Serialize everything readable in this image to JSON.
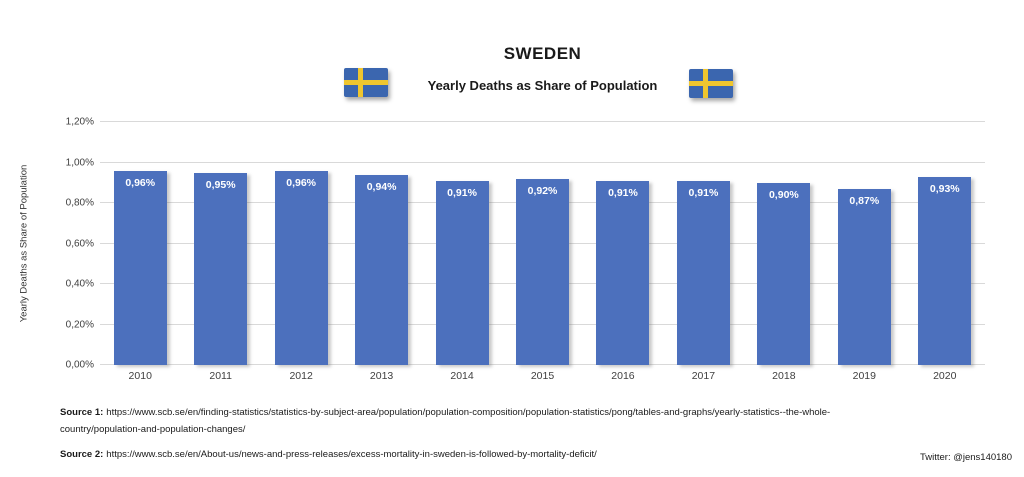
{
  "header": {
    "title": "SWEDEN",
    "subtitle": "Yearly Deaths as Share of Population"
  },
  "chart_data": {
    "type": "bar",
    "title": "SWEDEN",
    "subtitle": "Yearly Deaths as Share of Population",
    "categories": [
      "2010",
      "2011",
      "2012",
      "2013",
      "2014",
      "2015",
      "2016",
      "2017",
      "2018",
      "2019",
      "2020"
    ],
    "values": [
      0.96,
      0.95,
      0.96,
      0.94,
      0.91,
      0.92,
      0.91,
      0.91,
      0.9,
      0.87,
      0.93
    ],
    "bar_labels": [
      "0,96%",
      "0,95%",
      "0,96%",
      "0,94%",
      "0,91%",
      "0,92%",
      "0,91%",
      "0,91%",
      "0,90%",
      "0,87%",
      "0,93%"
    ],
    "xlabel": "",
    "ylabel": "Yearly Deaths as Share of Population",
    "ylim": [
      0,
      1.2
    ],
    "yticks": [
      0,
      0.2,
      0.4,
      0.6,
      0.8,
      1.0,
      1.2
    ],
    "ytick_labels": [
      "0,00%",
      "0,20%",
      "0,40%",
      "0,60%",
      "0,80%",
      "1,00%",
      "1,20%"
    ],
    "grid": true,
    "legend": false,
    "bar_color": "#4C70BD",
    "gridline_color": "#d9d9d9",
    "label_color": "#ffffff"
  },
  "flag": {
    "name": "sweden-flag",
    "blue": "#3B66AF",
    "yellow": "#EFC62F"
  },
  "footer": {
    "source1_label": "Source 1:",
    "source1_url": "https://www.scb.se/en/finding-statistics/statistics-by-subject-area/population/population-composition/population-statistics/pong/tables-and-graphs/yearly-statistics--the-whole-country/population-and-population-changes/",
    "source2_label": "Source 2:",
    "source2_url": "https://www.scb.se/en/About-us/news-and-press-releases/excess-mortality-in-sweden-is-followed-by-mortality-deficit/",
    "twitter": "Twitter: @jens140180"
  }
}
